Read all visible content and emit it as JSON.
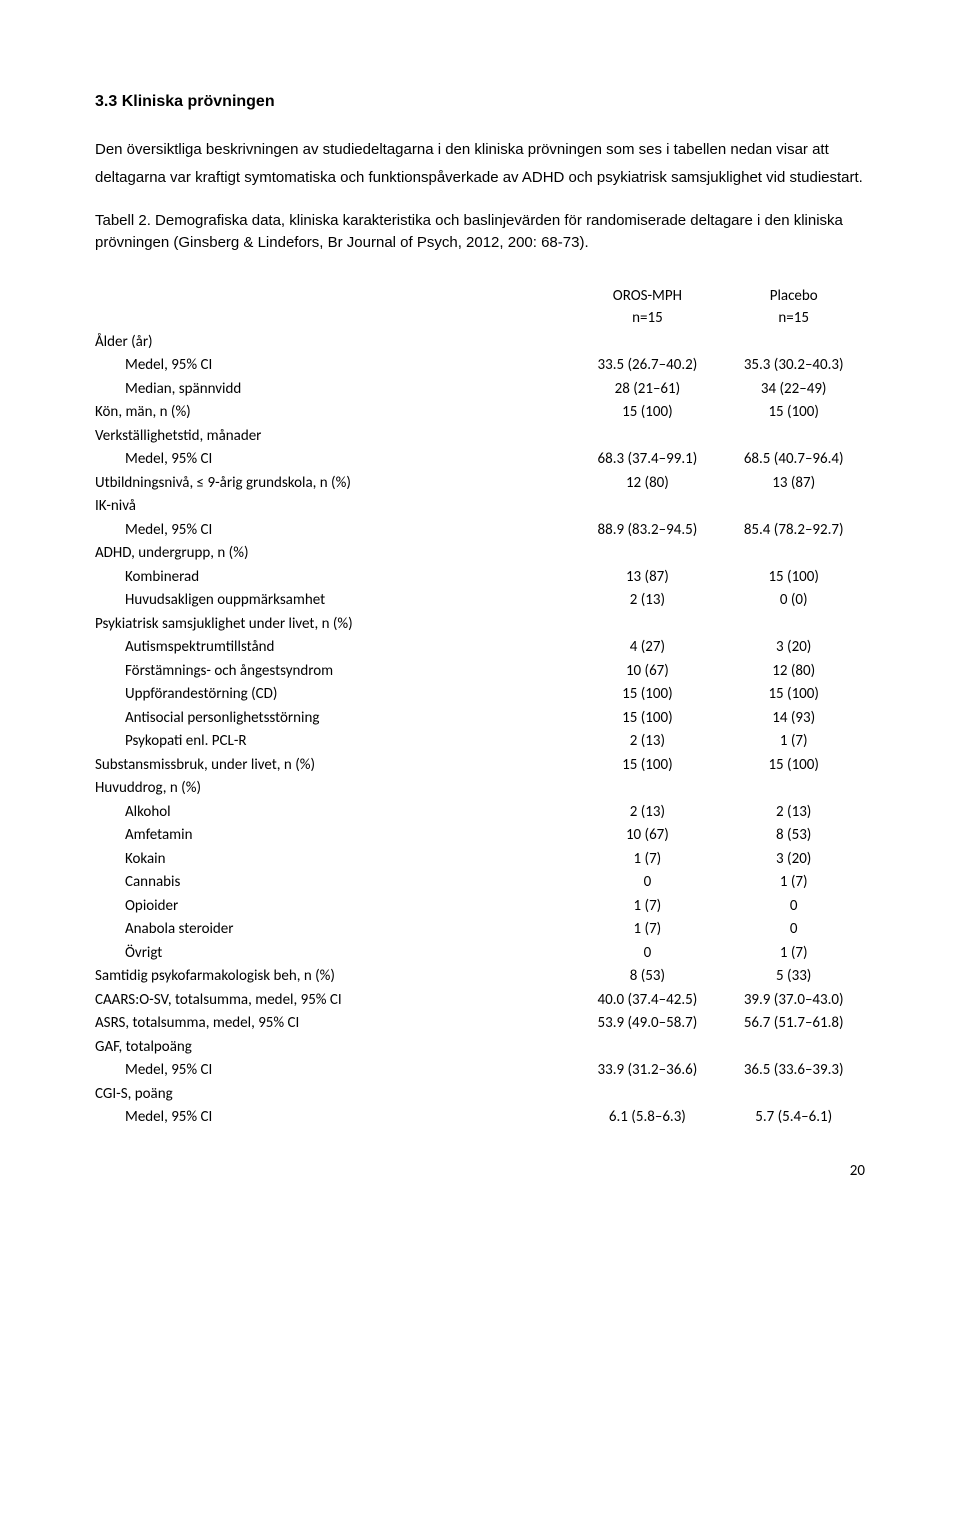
{
  "heading": "3.3  Kliniska prövningen",
  "paragraph": "Den översiktliga beskrivningen av studiedeltagarna i den kliniska prövningen som ses i tabellen nedan visar att deltagarna var kraftigt symtomatiska och funktionspåverkade av ADHD och psykiatrisk samsjuklighet vid studiestart.",
  "caption": "Tabell 2. Demografiska data, kliniska karakteristika och baslinjevärden för randomiserade deltagare i den kliniska prövningen (Ginsberg & Lindefors, Br Journal of Psych, 2012, 200: 68-73).",
  "header": {
    "col_a_line1": "OROS-MPH",
    "col_a_line2": "n=15",
    "col_b_line1": "Placebo",
    "col_b_line2": "n=15"
  },
  "rows": [
    {
      "label": "Ålder (år)",
      "indent": 0,
      "a": "",
      "b": ""
    },
    {
      "label": "Medel, 95% CI",
      "indent": 1,
      "a": "33.5 (26.7–40.2)",
      "b": "35.3 (30.2–40.3)"
    },
    {
      "label": "Median, spännvidd",
      "indent": 1,
      "a": "28 (21–61)",
      "b": "34 (22–49)"
    },
    {
      "label": "Kön, män, n (%)",
      "indent": 0,
      "a": "15 (100)",
      "b": "15 (100)"
    },
    {
      "label": "Verkställighetstid, månader",
      "indent": 0,
      "a": "",
      "b": ""
    },
    {
      "label": "Medel, 95% CI",
      "indent": 1,
      "a": "68.3 (37.4–99.1)",
      "b": "68.5 (40.7–96.4)"
    },
    {
      "label": "Utbildningsnivå, ≤ 9-årig grundskola, n (%)",
      "indent": 0,
      "a": "12 (80)",
      "b": "13 (87)"
    },
    {
      "label": "IK-nivå",
      "indent": 0,
      "a": "",
      "b": ""
    },
    {
      "label": "Medel, 95% CI",
      "indent": 1,
      "a": "88.9 (83.2–94.5)",
      "b": "85.4 (78.2–92.7)"
    },
    {
      "label": "ADHD, undergrupp, n (%)",
      "indent": 0,
      "a": "",
      "b": ""
    },
    {
      "label": "Kombinerad",
      "indent": 1,
      "a": "13 (87)",
      "b": "15 (100)"
    },
    {
      "label": "Huvudsakligen ouppmärksamhet",
      "indent": 1,
      "a": "2 (13)",
      "b": "0 (0)"
    },
    {
      "label": "Psykiatrisk samsjuklighet under livet, n (%)",
      "indent": 0,
      "a": "",
      "b": ""
    },
    {
      "label": "Autismspektrumtillstånd",
      "indent": 1,
      "a": "4 (27)",
      "b": "3 (20)"
    },
    {
      "label": "Förstämnings- och ångestsyndrom",
      "indent": 1,
      "a": "10 (67)",
      "b": "12 (80)"
    },
    {
      "label": "Uppförandestörning (CD)",
      "indent": 1,
      "a": "15 (100)",
      "b": "15 (100)"
    },
    {
      "label": "Antisocial personlighetsstörning",
      "indent": 1,
      "a": "15 (100)",
      "b": "14 (93)"
    },
    {
      "label": "Psykopati enl. PCL-R",
      "indent": 1,
      "a": "2 (13)",
      "b": "1 (7)"
    },
    {
      "label": "Substansmissbruk, under livet, n (%)",
      "indent": 0,
      "a": "15 (100)",
      "b": "15 (100)"
    },
    {
      "label": "Huvuddrog, n (%)",
      "indent": 0,
      "a": "",
      "b": ""
    },
    {
      "label": "Alkohol",
      "indent": 1,
      "a": "2 (13)",
      "b": "2 (13)"
    },
    {
      "label": "Amfetamin",
      "indent": 1,
      "a": "10 (67)",
      "b": "8 (53)"
    },
    {
      "label": "Kokain",
      "indent": 1,
      "a": "1 (7)",
      "b": "3 (20)"
    },
    {
      "label": "Cannabis",
      "indent": 1,
      "a": "0",
      "b": "1 (7)"
    },
    {
      "label": "Opioider",
      "indent": 1,
      "a": "1 (7)",
      "b": "0"
    },
    {
      "label": "Anabola steroider",
      "indent": 1,
      "a": "1 (7)",
      "b": "0"
    },
    {
      "label": "Övrigt",
      "indent": 1,
      "a": "0",
      "b": "1 (7)"
    },
    {
      "label": "Samtidig psykofarmakologisk beh, n (%)",
      "indent": 0,
      "a": "8 (53)",
      "b": "5 (33)"
    },
    {
      "label": "CAARS:O-SV, totalsumma, medel, 95% CI",
      "indent": 0,
      "a": "40.0 (37.4–42.5)",
      "b": "39.9 (37.0–43.0)"
    },
    {
      "label": "ASRS, totalsumma, medel, 95% CI",
      "indent": 0,
      "a": "53.9 (49.0–58.7)",
      "b": "56.7 (51.7–61.8)"
    },
    {
      "label": "GAF, totalpoäng",
      "indent": 0,
      "a": "",
      "b": ""
    },
    {
      "label": "Medel, 95% CI",
      "indent": 1,
      "a": "33.9 (31.2–36.6)",
      "b": "36.5 (33.6–39.3)"
    },
    {
      "label": "CGI-S, poäng",
      "indent": 0,
      "a": "",
      "b": ""
    },
    {
      "label": "Medel, 95% CI",
      "indent": 1,
      "a": "6.1 (5.8–6.3)",
      "b": "5.7 (5.4–6.1)"
    }
  ],
  "page_number": "20"
}
